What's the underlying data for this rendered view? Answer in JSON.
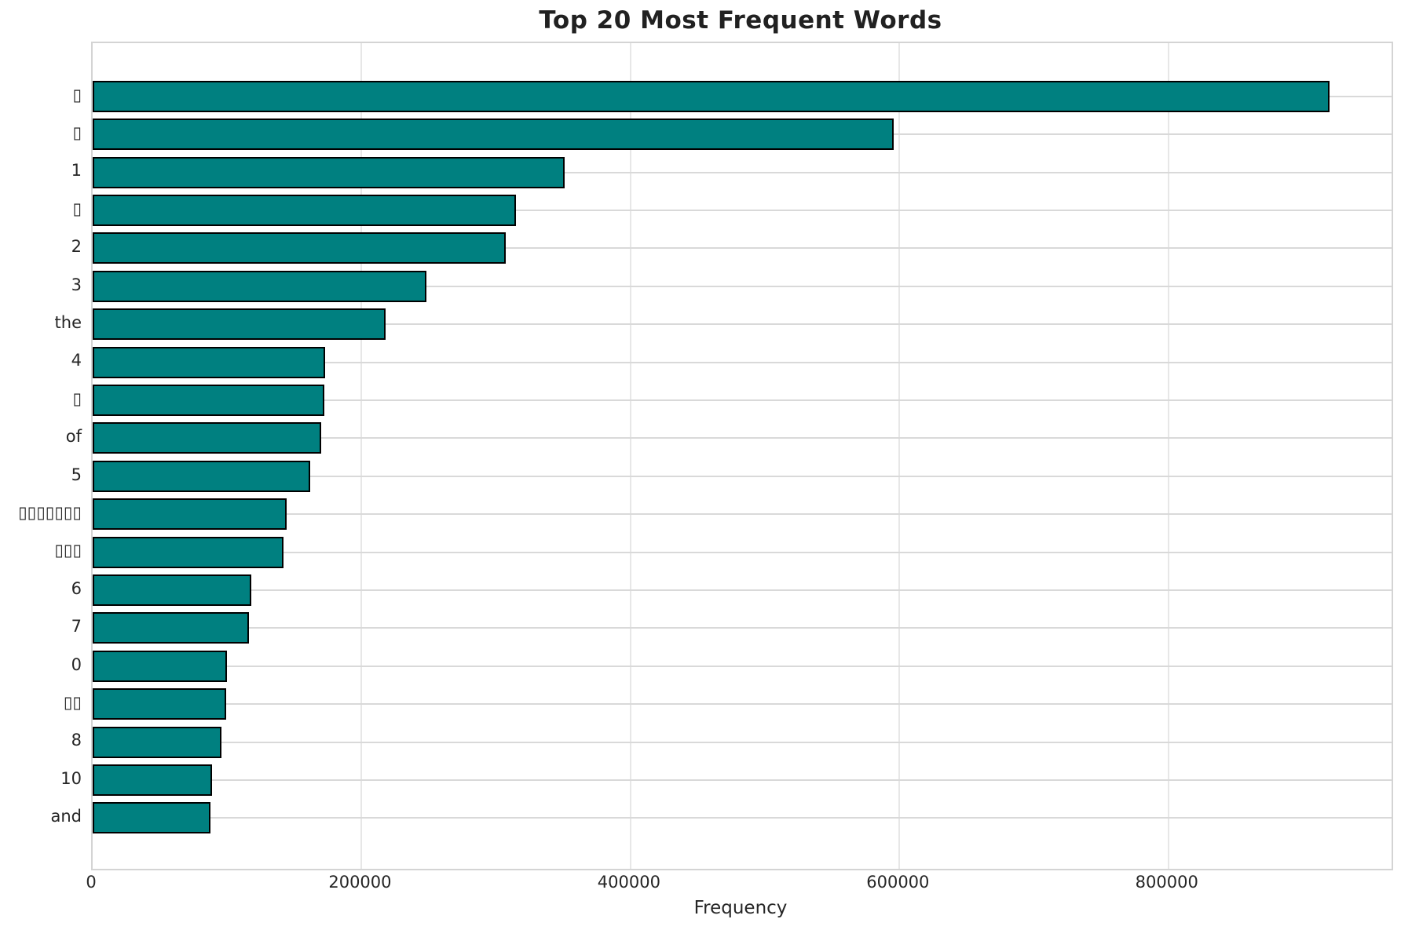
{
  "chart_data": {
    "type": "bar",
    "orientation": "horizontal",
    "title": "Top 20 Most Frequent Words",
    "xlabel": "Frequency",
    "ylabel": "",
    "categories": [
      "▯",
      "▯",
      "1",
      "▯",
      "2",
      "3",
      "the",
      "4",
      "▯",
      "of",
      "5",
      "▯▯▯▯▯▯▯",
      "▯▯▯",
      "6",
      "7",
      "0",
      "▯▯",
      "8",
      "10",
      "and"
    ],
    "values": [
      920000,
      596000,
      351000,
      315000,
      307000,
      248000,
      218000,
      173000,
      172000,
      170000,
      162000,
      144000,
      142000,
      118000,
      116000,
      100000,
      99000,
      96000,
      89000,
      87500
    ],
    "xlim": [
      0,
      966000
    ],
    "xticks": [
      0,
      200000,
      400000,
      600000,
      800000
    ],
    "xtick_labels": [
      "0",
      "200000",
      "400000",
      "600000",
      "800000"
    ],
    "grid": true,
    "legend": false,
    "colors": {
      "bar_fill": "#008080",
      "bar_edge": "#000000",
      "grid_horizontal": "#d9d9d9",
      "grid_vertical": "#e7e7e7",
      "spine": "#d4d4d4",
      "text": "#262626",
      "title": "#212121",
      "background": "#ffffff"
    }
  }
}
